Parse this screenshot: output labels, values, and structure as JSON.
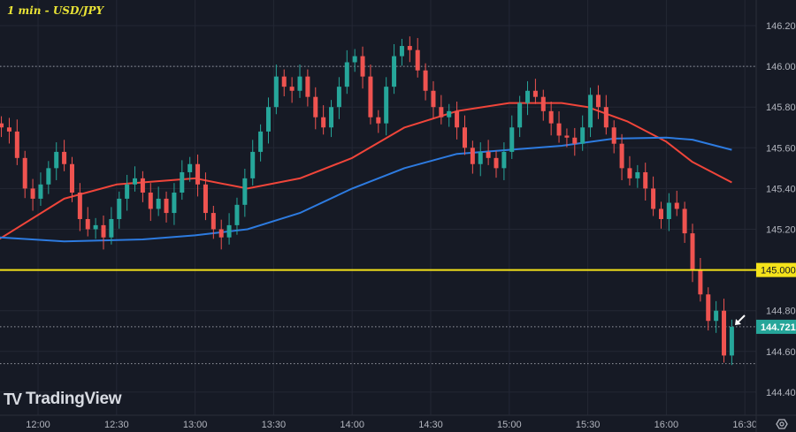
{
  "header": {
    "title": "1 min - USD/JPY"
  },
  "branding": {
    "logo_text": "TradingView"
  },
  "settings_icon": "gear-icon",
  "colors": {
    "background": "#161a25",
    "up": "#26a69a",
    "down": "#ef5350",
    "ma_red": "#f0453a",
    "ma_blue": "#2d7be0",
    "level": "#f5e31a",
    "last_price": "#26a69a"
  },
  "chart_data": {
    "type": "candlestick",
    "title": "1 min - USD/JPY",
    "ylim": [
      144.4,
      146.28
    ],
    "y_ticks": [
      "146.200",
      "146.000",
      "145.800",
      "145.600",
      "145.400",
      "145.200",
      "144.800",
      "144.600",
      "144.400"
    ],
    "x_ticks": [
      "12:00",
      "12:30",
      "13:00",
      "13:30",
      "14:00",
      "14:30",
      "15:00",
      "15:30",
      "16:00",
      "16:30"
    ],
    "grid": true,
    "candles_start": "11:46",
    "candle_step_minutes": 3,
    "close": [
      145.7,
      145.68,
      145.55,
      145.4,
      145.35,
      145.42,
      145.5,
      145.58,
      145.52,
      145.38,
      145.25,
      145.2,
      145.22,
      145.16,
      145.25,
      145.35,
      145.42,
      145.45,
      145.38,
      145.3,
      145.35,
      145.28,
      145.38,
      145.48,
      145.52,
      145.42,
      145.28,
      145.2,
      145.16,
      145.22,
      145.32,
      145.45,
      145.58,
      145.68,
      145.8,
      145.95,
      145.9,
      145.88,
      145.95,
      145.85,
      145.75,
      145.7,
      145.8,
      145.9,
      146.02,
      146.05,
      145.95,
      145.75,
      145.72,
      145.9,
      146.05,
      146.1,
      146.08,
      145.98,
      145.88,
      145.8,
      145.75,
      145.78,
      145.7,
      145.6,
      145.52,
      145.58,
      145.55,
      145.5,
      145.58,
      145.7,
      145.82,
      145.88,
      145.85,
      145.78,
      145.72,
      145.66,
      145.65,
      145.62,
      145.7,
      145.86,
      145.8,
      145.7,
      145.62,
      145.5,
      145.45,
      145.48,
      145.4,
      145.3,
      145.25,
      145.33,
      145.3,
      145.18,
      145.0,
      144.88,
      144.75,
      144.8,
      144.58,
      144.721
    ],
    "moving_averages": [
      {
        "color": "#f0453a",
        "points": [
          [
            "11:45",
            145.15
          ],
          [
            "12:10",
            145.35
          ],
          [
            "12:30",
            145.42
          ],
          [
            "13:00",
            145.45
          ],
          [
            "13:20",
            145.4
          ],
          [
            "13:40",
            145.45
          ],
          [
            "14:00",
            145.55
          ],
          [
            "14:20",
            145.7
          ],
          [
            "14:40",
            145.78
          ],
          [
            "15:00",
            145.82
          ],
          [
            "15:20",
            145.82
          ],
          [
            "15:30",
            145.8
          ],
          [
            "15:45",
            145.73
          ],
          [
            "16:00",
            145.63
          ],
          [
            "16:10",
            145.53
          ],
          [
            "16:25",
            145.43
          ]
        ]
      },
      {
        "color": "#2d7be0",
        "points": [
          [
            "11:45",
            145.16
          ],
          [
            "12:10",
            145.14
          ],
          [
            "12:40",
            145.15
          ],
          [
            "13:00",
            145.17
          ],
          [
            "13:20",
            145.2
          ],
          [
            "13:40",
            145.28
          ],
          [
            "14:00",
            145.4
          ],
          [
            "14:20",
            145.5
          ],
          [
            "14:40",
            145.57
          ],
          [
            "15:00",
            145.59
          ],
          [
            "15:20",
            145.61
          ],
          [
            "15:40",
            145.645
          ],
          [
            "16:00",
            145.65
          ],
          [
            "16:10",
            145.64
          ],
          [
            "16:25",
            145.59
          ]
        ]
      }
    ],
    "horizontal_level": {
      "price": 145.0,
      "label": "145.000"
    },
    "dotted_levels": [
      146.0,
      144.721,
      144.54
    ],
    "last_price": {
      "price": 144.721,
      "label": "144.721"
    }
  }
}
